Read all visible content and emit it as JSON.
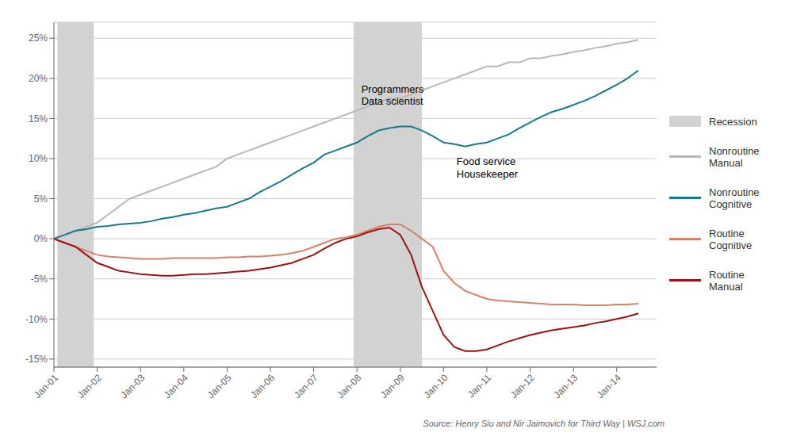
{
  "chart_data": {
    "type": "line",
    "x": [
      2001.0,
      2001.25,
      2001.5,
      2001.75,
      2002.0,
      2002.25,
      2002.5,
      2002.75,
      2003.0,
      2003.25,
      2003.5,
      2003.75,
      2004.0,
      2004.25,
      2004.5,
      2004.75,
      2005.0,
      2005.25,
      2005.5,
      2005.75,
      2006.0,
      2006.25,
      2006.5,
      2006.75,
      2007.0,
      2007.25,
      2007.5,
      2007.75,
      2008.0,
      2008.25,
      2008.5,
      2008.75,
      2009.0,
      2009.25,
      2009.5,
      2009.75,
      2010.0,
      2010.25,
      2010.5,
      2010.75,
      2011.0,
      2011.25,
      2011.5,
      2011.75,
      2012.0,
      2012.25,
      2012.5,
      2012.75,
      2013.0,
      2013.25,
      2013.5,
      2013.75,
      2014.0,
      2014.25,
      2014.5
    ],
    "series": [
      {
        "name": "Nonroutine\nManual",
        "color": "#b8b8b8",
        "values": [
          0.0,
          0.005,
          0.01,
          0.015,
          0.02,
          0.03,
          0.04,
          0.05,
          0.055,
          0.06,
          0.065,
          0.07,
          0.075,
          0.08,
          0.085,
          0.09,
          0.1,
          0.105,
          0.11,
          0.115,
          0.12,
          0.125,
          0.13,
          0.135,
          0.14,
          0.145,
          0.15,
          0.155,
          0.16,
          0.165,
          0.17,
          0.175,
          0.175,
          0.18,
          0.185,
          0.19,
          0.195,
          0.2,
          0.205,
          0.21,
          0.215,
          0.215,
          0.22,
          0.22,
          0.225,
          0.225,
          0.228,
          0.23,
          0.233,
          0.235,
          0.238,
          0.24,
          0.243,
          0.245,
          0.248
        ]
      },
      {
        "name": "Nonroutine\nCognitive",
        "color": "#1a7a8c",
        "values": [
          0.0,
          0.005,
          0.01,
          0.012,
          0.015,
          0.016,
          0.018,
          0.019,
          0.02,
          0.022,
          0.025,
          0.027,
          0.03,
          0.032,
          0.035,
          0.038,
          0.04,
          0.045,
          0.05,
          0.058,
          0.065,
          0.072,
          0.08,
          0.088,
          0.095,
          0.105,
          0.11,
          0.115,
          0.12,
          0.128,
          0.135,
          0.138,
          0.14,
          0.14,
          0.135,
          0.128,
          0.12,
          0.118,
          0.115,
          0.118,
          0.12,
          0.125,
          0.13,
          0.138,
          0.145,
          0.152,
          0.158,
          0.162,
          0.167,
          0.172,
          0.178,
          0.185,
          0.192,
          0.2,
          0.21
        ]
      },
      {
        "name": "Routine\nCognitive",
        "color": "#d4826a",
        "values": [
          0.0,
          -0.005,
          -0.01,
          -0.015,
          -0.02,
          -0.022,
          -0.023,
          -0.024,
          -0.025,
          -0.025,
          -0.025,
          -0.024,
          -0.024,
          -0.024,
          -0.024,
          -0.024,
          -0.023,
          -0.023,
          -0.022,
          -0.022,
          -0.021,
          -0.02,
          -0.018,
          -0.015,
          -0.01,
          -0.005,
          0.0,
          0.002,
          0.005,
          0.01,
          0.015,
          0.018,
          0.018,
          0.01,
          0.0,
          -0.01,
          -0.04,
          -0.055,
          -0.065,
          -0.07,
          -0.075,
          -0.077,
          -0.078,
          -0.079,
          -0.08,
          -0.081,
          -0.082,
          -0.082,
          -0.082,
          -0.083,
          -0.083,
          -0.083,
          -0.082,
          -0.082,
          -0.081
        ]
      },
      {
        "name": "Routine\nManual",
        "color": "#9b1313",
        "values": [
          0.0,
          -0.005,
          -0.01,
          -0.02,
          -0.03,
          -0.035,
          -0.04,
          -0.042,
          -0.044,
          -0.045,
          -0.046,
          -0.046,
          -0.045,
          -0.044,
          -0.044,
          -0.043,
          -0.042,
          -0.041,
          -0.04,
          -0.038,
          -0.036,
          -0.033,
          -0.03,
          -0.025,
          -0.02,
          -0.012,
          -0.005,
          0.0,
          0.003,
          0.008,
          0.012,
          0.014,
          0.005,
          -0.02,
          -0.06,
          -0.09,
          -0.12,
          -0.135,
          -0.14,
          -0.14,
          -0.138,
          -0.133,
          -0.128,
          -0.124,
          -0.12,
          -0.117,
          -0.114,
          -0.112,
          -0.11,
          -0.108,
          -0.105,
          -0.103,
          -0.1,
          -0.097,
          -0.093
        ]
      }
    ],
    "recession": {
      "name": "Recession",
      "color": "#d2d2d2",
      "ranges": [
        [
          2001.08,
          2001.92
        ],
        [
          2007.92,
          2009.5
        ]
      ]
    },
    "annotations": [
      {
        "text": "Programmers\nData scientist",
        "x": 2008.1,
        "y": 0.195
      },
      {
        "text": "Food service\nHousekeeper",
        "x": 2010.3,
        "y": 0.105
      }
    ],
    "source": "Source: Henry Siu and Nir Jaimovich for Third Way  |  WSJ.com",
    "xlim": [
      2001.0,
      2014.92
    ],
    "xticks": [
      {
        "value": 2001,
        "label": "Jan-01"
      },
      {
        "value": 2002,
        "label": "Jan-02"
      },
      {
        "value": 2003,
        "label": "Jan-03"
      },
      {
        "value": 2004,
        "label": "Jan-04"
      },
      {
        "value": 2005,
        "label": "Jan-05"
      },
      {
        "value": 2006,
        "label": "Jan-06"
      },
      {
        "value": 2007,
        "label": "Jan-07"
      },
      {
        "value": 2008,
        "label": "Jan-08"
      },
      {
        "value": 2009,
        "label": "Jan-09"
      },
      {
        "value": 2010,
        "label": "Jan-10"
      },
      {
        "value": 2011,
        "label": "Jan-11"
      },
      {
        "value": 2012,
        "label": "Jan-12"
      },
      {
        "value": 2013,
        "label": "Jan-13"
      },
      {
        "value": 2014,
        "label": "Jan-14"
      }
    ],
    "ylim": [
      -0.16,
      0.27
    ],
    "yticks": [
      {
        "value": -0.15,
        "label": "-15%"
      },
      {
        "value": -0.1,
        "label": "-10%"
      },
      {
        "value": -0.05,
        "label": "-5%"
      },
      {
        "value": 0.0,
        "label": "0%"
      },
      {
        "value": 0.05,
        "label": "5%"
      },
      {
        "value": 0.1,
        "label": "10%"
      },
      {
        "value": 0.15,
        "label": "15%"
      },
      {
        "value": 0.2,
        "label": "20%"
      },
      {
        "value": 0.25,
        "label": "25%"
      }
    ],
    "grid": true,
    "legend": "right"
  }
}
